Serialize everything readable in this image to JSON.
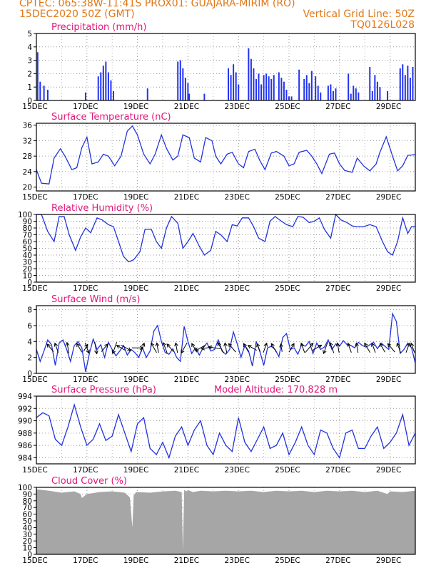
{
  "header": {
    "line1": "CPTEC:   065:38W-11:41S   PROX01: GUAJARA-MIRIM (RO)",
    "line2": "15DEC2020 50Z (GMT)",
    "grid_note": "Vertical Grid Line: 50Z",
    "code": "TQ0126L028"
  },
  "colors": {
    "header": "#e07818",
    "title": "#e0187a",
    "line": "#2233dd",
    "bar": "#2233ee",
    "cloud": "#a6a6a6",
    "grid": "#999999"
  },
  "chart_data": [
    {
      "type": "bar",
      "title": "Precipitation (mm/h)",
      "xticks": [
        "15DEC",
        "17DEC",
        "19DEC",
        "21DEC",
        "23DEC",
        "25DEC",
        "27DEC",
        "29DEC"
      ],
      "xlim": [
        15,
        30
      ],
      "ylim": [
        0,
        5
      ],
      "yticks": [
        0,
        1,
        2,
        3,
        4,
        5
      ],
      "x": [
        15.05,
        15.15,
        15.3,
        15.45,
        16.95,
        17.45,
        17.55,
        17.65,
        17.75,
        17.85,
        17.95,
        18.05,
        19.4,
        20.6,
        20.7,
        20.8,
        20.9,
        21.0,
        21.05,
        21.65,
        22.6,
        22.7,
        22.8,
        22.9,
        23.0,
        23.4,
        23.5,
        23.6,
        23.7,
        23.8,
        23.9,
        24.0,
        24.1,
        24.2,
        24.3,
        24.4,
        24.6,
        24.7,
        24.8,
        24.9,
        25.0,
        25.1,
        25.4,
        25.6,
        25.7,
        25.8,
        25.9,
        26.05,
        26.15,
        26.25,
        26.55,
        26.65,
        26.75,
        26.85,
        27.35,
        27.45,
        27.55,
        27.65,
        27.75,
        28.2,
        28.3,
        28.4,
        28.5,
        28.6,
        28.9,
        29.4,
        29.5,
        29.6,
        29.7,
        29.8,
        29.9
      ],
      "values": [
        3.6,
        1.4,
        1.1,
        0.8,
        0.6,
        1.8,
        2.1,
        2.6,
        2.9,
        2.1,
        1.5,
        0.7,
        0.9,
        2.9,
        3.0,
        2.4,
        1.7,
        1.3,
        0.5,
        0.5,
        2.4,
        1.9,
        2.7,
        2.1,
        1.2,
        3.9,
        3.1,
        2.4,
        1.6,
        2.0,
        1.2,
        1.9,
        2.0,
        1.8,
        1.6,
        1.9,
        2.1,
        1.7,
        1.4,
        0.8,
        0.3,
        0.3,
        2.3,
        1.6,
        1.9,
        1.3,
        2.2,
        1.8,
        1.1,
        0.6,
        1.1,
        1.2,
        0.7,
        0.9,
        2.0,
        0.5,
        1.1,
        0.9,
        0.6,
        2.5,
        0.7,
        1.9,
        1.4,
        1.0,
        0.7,
        2.4,
        2.7,
        1.9,
        2.6,
        1.7,
        2.5
      ]
    },
    {
      "type": "line",
      "title": "Surface Temperature (nC)",
      "xticks": [
        "15DEC",
        "17DEC",
        "19DEC",
        "21DEC",
        "23DEC",
        "25DEC",
        "27DEC",
        "29DEC"
      ],
      "xlim": [
        15,
        30
      ],
      "ylim": [
        19,
        36.5
      ],
      "yticks": [
        20,
        24,
        28,
        32,
        36
      ],
      "x": [
        15,
        15.2,
        15.5,
        15.7,
        15.95,
        16.15,
        16.4,
        16.6,
        16.8,
        17.0,
        17.2,
        17.45,
        17.65,
        17.85,
        18.1,
        18.35,
        18.6,
        18.8,
        19.0,
        19.25,
        19.5,
        19.7,
        19.95,
        20.15,
        20.4,
        20.6,
        20.8,
        21.05,
        21.25,
        21.5,
        21.7,
        21.95,
        22.1,
        22.3,
        22.55,
        22.75,
        23.0,
        23.2,
        23.4,
        23.65,
        23.85,
        24.05,
        24.3,
        24.5,
        24.8,
        25.0,
        25.2,
        25.4,
        25.7,
        25.9,
        26.1,
        26.3,
        26.6,
        26.8,
        27.0,
        27.2,
        27.5,
        27.7,
        27.95,
        28.2,
        28.45,
        28.6,
        28.85,
        29.1,
        29.3,
        29.5,
        29.7,
        30.0
      ],
      "values": [
        24.5,
        21.0,
        20.8,
        27.5,
        29.9,
        27.8,
        24.5,
        25.0,
        30.2,
        32.9,
        26.0,
        26.5,
        28.5,
        28.0,
        25.5,
        28.0,
        34.5,
        35.8,
        33.5,
        28.5,
        26.0,
        28.5,
        33.5,
        30.0,
        27.0,
        28.0,
        33.5,
        32.8,
        27.5,
        26.5,
        32.8,
        32.0,
        28.0,
        26.0,
        28.5,
        29.0,
        26.0,
        25.0,
        29.2,
        29.8,
        26.8,
        24.5,
        28.8,
        29.2,
        28.0,
        25.5,
        26.0,
        29.0,
        29.5,
        28.0,
        26.0,
        23.5,
        28.5,
        28.8,
        26.0,
        24.3,
        23.8,
        27.5,
        25.5,
        24.2,
        26.0,
        29.0,
        33.0,
        28.0,
        24.2,
        25.5,
        28.2,
        28.4
      ]
    },
    {
      "type": "line",
      "title": "Relative Humidity (%)",
      "xticks": [
        "15DEC",
        "17DEC",
        "19DEC",
        "21DEC",
        "23DEC",
        "25DEC",
        "27DEC",
        "29DEC"
      ],
      "xlim": [
        15,
        30
      ],
      "ylim": [
        0,
        100
      ],
      "yticks": [
        0,
        10,
        20,
        30,
        40,
        50,
        60,
        70,
        80,
        90,
        100
      ],
      "x": [
        15,
        15.2,
        15.45,
        15.7,
        15.9,
        16.1,
        16.3,
        16.55,
        16.75,
        16.95,
        17.15,
        17.4,
        17.6,
        17.85,
        18.05,
        18.25,
        18.45,
        18.65,
        18.85,
        19.1,
        19.3,
        19.55,
        19.75,
        19.95,
        20.15,
        20.35,
        20.6,
        20.8,
        21.0,
        21.2,
        21.45,
        21.65,
        21.9,
        22.1,
        22.3,
        22.55,
        22.75,
        22.95,
        23.15,
        23.4,
        23.6,
        23.8,
        24.05,
        24.25,
        24.45,
        24.7,
        24.9,
        25.15,
        25.35,
        25.55,
        25.8,
        26.0,
        26.2,
        26.4,
        26.65,
        26.85,
        27.05,
        27.3,
        27.5,
        27.7,
        27.95,
        28.2,
        28.45,
        28.7,
        28.9,
        29.1,
        29.3,
        29.5,
        29.7,
        29.85,
        30.0
      ],
      "values": [
        100,
        100,
        75,
        60,
        97,
        97,
        70,
        47,
        67,
        80,
        73,
        95,
        92,
        85,
        82,
        60,
        38,
        30,
        33,
        45,
        78,
        78,
        60,
        50,
        80,
        97,
        87,
        50,
        60,
        72,
        53,
        40,
        47,
        75,
        70,
        60,
        85,
        83,
        95,
        95,
        82,
        65,
        60,
        90,
        97,
        90,
        85,
        82,
        97,
        96,
        88,
        90,
        95,
        78,
        65,
        100,
        92,
        88,
        83,
        82,
        82,
        85,
        82,
        60,
        45,
        40,
        60,
        95,
        72,
        82,
        82
      ]
    },
    {
      "type": "line",
      "title": "Surface Wind (m/s)",
      "xticks": [
        "15DEC",
        "17DEC",
        "19DEC",
        "21DEC",
        "23DEC",
        "25DEC",
        "27DEC",
        "29DEC"
      ],
      "xlim": [
        15,
        30
      ],
      "ylim": [
        0,
        8.5
      ],
      "yticks": [
        0,
        2,
        4,
        6,
        8
      ],
      "x": [
        15,
        15.15,
        15.3,
        15.45,
        15.6,
        15.75,
        15.9,
        16.05,
        16.2,
        16.35,
        16.5,
        16.65,
        16.8,
        16.95,
        17.1,
        17.25,
        17.4,
        17.55,
        17.7,
        17.85,
        18.0,
        18.15,
        18.3,
        18.45,
        18.6,
        18.75,
        18.9,
        19.05,
        19.2,
        19.35,
        19.5,
        19.65,
        19.8,
        19.95,
        20.1,
        20.25,
        20.4,
        20.55,
        20.7,
        20.85,
        21.0,
        21.15,
        21.3,
        21.45,
        21.6,
        21.75,
        21.9,
        22.05,
        22.2,
        22.35,
        22.5,
        22.65,
        22.8,
        22.95,
        23.1,
        23.25,
        23.4,
        23.55,
        23.7,
        23.85,
        24.0,
        24.15,
        24.3,
        24.45,
        24.6,
        24.75,
        24.9,
        25.05,
        25.2,
        25.35,
        25.5,
        25.65,
        25.8,
        25.95,
        26.1,
        26.25,
        26.4,
        26.55,
        26.7,
        26.85,
        27.0,
        27.15,
        27.3,
        27.45,
        27.6,
        27.75,
        27.9,
        28.05,
        28.2,
        28.35,
        28.5,
        28.65,
        28.8,
        28.95,
        29.1,
        29.25,
        29.4,
        29.55,
        29.7,
        29.85,
        30.0
      ],
      "values": [
        3.0,
        1.5,
        2.8,
        4.2,
        3.6,
        1.0,
        3.8,
        4.2,
        3.0,
        1.5,
        3.5,
        4.0,
        3.2,
        0.2,
        2.5,
        4.3,
        3.0,
        3.6,
        2.0,
        3.9,
        3.0,
        2.2,
        2.8,
        3.5,
        2.3,
        3.0,
        2.6,
        2.0,
        3.2,
        2.0,
        2.8,
        5.3,
        6.0,
        4.0,
        2.6,
        2.4,
        3.1,
        2.0,
        1.5,
        5.9,
        4.0,
        2.5,
        3.2,
        2.3,
        3.2,
        3.8,
        2.8,
        3.0,
        4.2,
        2.8,
        2.4,
        3.0,
        5.2,
        3.7,
        2.0,
        3.5,
        2.8,
        0.9,
        4.0,
        2.7,
        1.0,
        3.2,
        3.4,
        3.0,
        2.1,
        4.5,
        5.0,
        3.0,
        3.2,
        2.4,
        3.6,
        3.4,
        4.0,
        2.5,
        3.8,
        3.0,
        3.3,
        4.2,
        3.0,
        3.7,
        3.4,
        4.1,
        3.6,
        3.5,
        3.2,
        3.9,
        3.5,
        3.3,
        3.6,
        3.9,
        3.1,
        3.8,
        3.4,
        3.0,
        7.5,
        6.5,
        2.5,
        3.0,
        3.8,
        3.2,
        1.3
      ],
      "arrows": [
        {
          "x": 15.55,
          "dir": -40,
          "len": 0.5
        },
        {
          "x": 15.8,
          "dir": -20,
          "len": 0.5
        },
        {
          "x": 16.25,
          "dir": -10,
          "len": 0.55
        },
        {
          "x": 16.7,
          "dir": -30,
          "len": 0.5
        },
        {
          "x": 16.95,
          "dir": 30,
          "len": 0.4
        },
        {
          "x": 17.0,
          "dir": 160,
          "len": 0.55
        },
        {
          "x": 17.35,
          "dir": 170,
          "len": 0.6
        },
        {
          "x": 17.7,
          "dir": 40,
          "len": 0.5
        },
        {
          "x": 18.1,
          "dir": 200,
          "len": 0.6
        },
        {
          "x": 18.35,
          "dir": -60,
          "len": 0.5
        },
        {
          "x": 18.55,
          "dir": 120,
          "len": 0.55
        },
        {
          "x": 19.0,
          "dir": 90,
          "len": 0.55
        },
        {
          "x": 19.2,
          "dir": 20,
          "len": 0.5
        },
        {
          "x": 19.65,
          "dir": -30,
          "len": 0.55
        },
        {
          "x": 19.8,
          "dir": -10,
          "len": 0.5
        },
        {
          "x": 20.1,
          "dir": -20,
          "len": 0.55
        },
        {
          "x": 20.3,
          "dir": -40,
          "len": 0.5
        },
        {
          "x": 20.55,
          "dir": -10,
          "len": 0.5
        },
        {
          "x": 20.85,
          "dir": -150,
          "len": 0.6
        },
        {
          "x": 21.25,
          "dir": -30,
          "len": 0.5
        },
        {
          "x": 21.5,
          "dir": -120,
          "len": 0.6
        },
        {
          "x": 21.75,
          "dir": -100,
          "len": 0.55
        },
        {
          "x": 22.05,
          "dir": -80,
          "len": 0.6
        },
        {
          "x": 22.3,
          "dir": -30,
          "len": 0.6
        },
        {
          "x": 22.5,
          "dir": -10,
          "len": 0.5
        },
        {
          "x": 22.75,
          "dir": -40,
          "len": 0.55
        },
        {
          "x": 23.3,
          "dir": -30,
          "len": 0.5
        },
        {
          "x": 23.55,
          "dir": -60,
          "len": 0.5
        },
        {
          "x": 23.8,
          "dir": -20,
          "len": 0.45
        },
        {
          "x": 24.05,
          "dir": 20,
          "len": 0.5
        },
        {
          "x": 24.4,
          "dir": -30,
          "len": 0.5
        },
        {
          "x": 24.7,
          "dir": -10,
          "len": 0.4
        },
        {
          "x": 25.1,
          "dir": 30,
          "len": 0.5
        },
        {
          "x": 25.55,
          "dir": -20,
          "len": 0.5
        },
        {
          "x": 25.8,
          "dir": 40,
          "len": 0.6
        },
        {
          "x": 26.1,
          "dir": 60,
          "len": 0.55
        },
        {
          "x": 26.45,
          "dir": -160,
          "len": 0.6
        },
        {
          "x": 26.7,
          "dir": -20,
          "len": 0.55
        },
        {
          "x": 26.95,
          "dir": -10,
          "len": 0.5
        },
        {
          "x": 27.4,
          "dir": -20,
          "len": 0.5
        },
        {
          "x": 27.7,
          "dir": -10,
          "len": 0.5
        },
        {
          "x": 28.1,
          "dir": -30,
          "len": 0.55
        },
        {
          "x": 28.35,
          "dir": -20,
          "len": 0.5
        },
        {
          "x": 28.7,
          "dir": -30,
          "len": 0.5
        },
        {
          "x": 29.05,
          "dir": -40,
          "len": 0.55
        },
        {
          "x": 29.35,
          "dir": -20,
          "len": 0.5
        },
        {
          "x": 29.7,
          "dir": 20,
          "len": 0.5
        },
        {
          "x": 29.9,
          "dir": -20,
          "len": 0.5
        }
      ]
    },
    {
      "type": "line",
      "title": "Surface Pressure (hPa)",
      "note": "Model Altitude: 170.828 m",
      "xticks": [
        "15DEC",
        "17DEC",
        "19DEC",
        "21DEC",
        "23DEC",
        "25DEC",
        "27DEC",
        "29DEC"
      ],
      "xlim": [
        15,
        30
      ],
      "ylim": [
        983,
        994
      ],
      "yticks": [
        984,
        986,
        988,
        990,
        992,
        994
      ],
      "x": [
        15,
        15.25,
        15.5,
        15.75,
        16.0,
        16.25,
        16.5,
        16.75,
        17.0,
        17.25,
        17.5,
        17.75,
        18.0,
        18.25,
        18.5,
        18.75,
        19.0,
        19.25,
        19.5,
        19.75,
        20.0,
        20.25,
        20.5,
        20.75,
        21.0,
        21.25,
        21.5,
        21.75,
        22.0,
        22.25,
        22.5,
        22.75,
        23.0,
        23.25,
        23.5,
        23.75,
        24.0,
        24.25,
        24.5,
        24.75,
        25.0,
        25.25,
        25.5,
        25.75,
        26.0,
        26.25,
        26.5,
        26.75,
        27.0,
        27.25,
        27.5,
        27.75,
        28.0,
        28.25,
        28.5,
        28.75,
        29.0,
        29.25,
        29.5,
        29.75,
        30.0
      ],
      "values": [
        990.5,
        991.3,
        990.8,
        987.0,
        986.0,
        989.0,
        992.6,
        989.0,
        986.0,
        987.0,
        989.5,
        986.8,
        987.5,
        991.0,
        988.0,
        985.0,
        989.5,
        990.5,
        985.5,
        984.5,
        986.5,
        984.0,
        987.5,
        989.0,
        986.0,
        988.5,
        990.0,
        986.0,
        984.5,
        988.0,
        986.0,
        985.0,
        990.5,
        986.5,
        985.0,
        987.0,
        989.0,
        985.5,
        986.0,
        988.0,
        984.5,
        986.5,
        989.0,
        986.0,
        984.5,
        988.5,
        988.0,
        985.5,
        984.0,
        988.0,
        988.5,
        985.5,
        985.5,
        987.5,
        989.0,
        985.5,
        986.5,
        988.0,
        991.0,
        986.0,
        988.0
      ]
    },
    {
      "type": "area",
      "title": "Cloud Cover (%)",
      "xticks": [
        "15DEC",
        "17DEC",
        "19DEC",
        "21DEC",
        "23DEC",
        "25DEC",
        "27DEC",
        "29DEC"
      ],
      "xlim": [
        15,
        30
      ],
      "ylim": [
        0,
        100
      ],
      "yticks": [
        0,
        10,
        20,
        30,
        40,
        50,
        60,
        70,
        80,
        90,
        100
      ],
      "x": [
        15,
        15.5,
        16.0,
        16.5,
        16.75,
        16.8,
        17.0,
        17.5,
        18.0,
        18.5,
        18.7,
        18.8,
        18.85,
        18.95,
        19.5,
        20.0,
        20.5,
        20.75,
        20.8,
        20.85,
        20.95,
        21.0,
        21.2,
        21.5,
        22.0,
        22.5,
        23.0,
        23.5,
        24.0,
        24.5,
        25.0,
        25.5,
        26.0,
        26.5,
        27.0,
        27.5,
        28.0,
        28.5,
        28.9,
        29.0,
        29.5,
        30.0
      ],
      "values": [
        97,
        95,
        92,
        94,
        90,
        84,
        90,
        93,
        94,
        92,
        85,
        40,
        88,
        93,
        92,
        94,
        95,
        93,
        5,
        96,
        94,
        96,
        93,
        95,
        94,
        95,
        94,
        95,
        93,
        95,
        94,
        95,
        93,
        95,
        94,
        95,
        93,
        95,
        90,
        94,
        93,
        95
      ]
    }
  ]
}
